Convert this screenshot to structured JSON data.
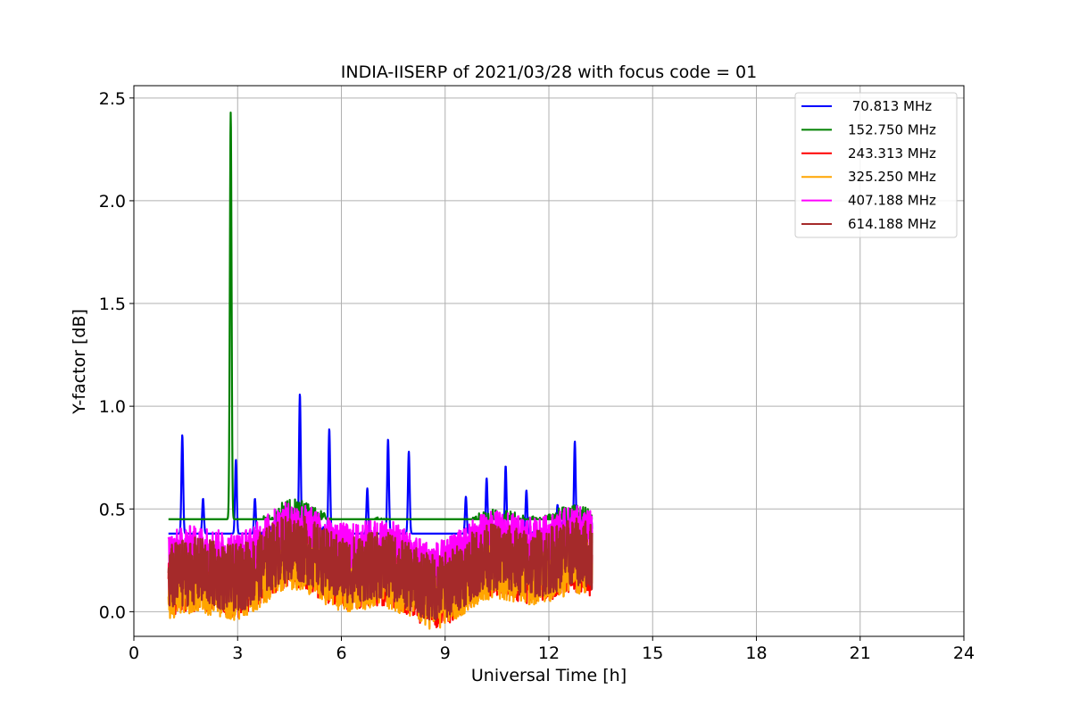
{
  "chart_data": {
    "type": "line",
    "title": "INDIA-IISERP of 2021/03/28 with focus code = 01",
    "xlabel": "Universal Time [h]",
    "ylabel": "Y-factor [dB]",
    "xlim": [
      0,
      24
    ],
    "ylim": [
      -0.12,
      2.56
    ],
    "x_ticks": [
      0,
      3,
      6,
      9,
      12,
      15,
      18,
      21,
      24
    ],
    "x_tick_labels": [
      "0",
      "3",
      "6",
      "9",
      "12",
      "15",
      "18",
      "21",
      "24"
    ],
    "y_ticks": [
      0.0,
      0.5,
      1.0,
      1.5,
      2.0,
      2.5
    ],
    "y_tick_labels": [
      "0.0",
      "0.5",
      "1.0",
      "1.5",
      "2.0",
      "2.5"
    ],
    "grid": true,
    "legend_position": "top-right",
    "data_range_x": [
      1.0,
      13.25
    ],
    "series": [
      {
        "name": " 70.813 MHz",
        "color": "#0000ff",
        "baseline": [
          0.3,
          0.38
        ],
        "peaks": [
          [
            1.4,
            0.86
          ],
          [
            2.0,
            0.55
          ],
          [
            2.95,
            0.74
          ],
          [
            3.5,
            0.55
          ],
          [
            4.8,
            1.06
          ],
          [
            5.65,
            0.89
          ],
          [
            6.75,
            0.6
          ],
          [
            7.35,
            0.84
          ],
          [
            7.95,
            0.78
          ],
          [
            9.6,
            0.56
          ],
          [
            10.2,
            0.65
          ],
          [
            10.75,
            0.71
          ],
          [
            11.35,
            0.59
          ],
          [
            12.25,
            0.52
          ],
          [
            12.75,
            0.83
          ],
          [
            13.2,
            0.43
          ]
        ]
      },
      {
        "name": "152.750 MHz",
        "color": "#008000",
        "baseline": [
          0.25,
          0.45
        ],
        "peaks": [
          [
            2.8,
            2.43
          ],
          [
            5.5,
            0.48
          ]
        ]
      },
      {
        "name": "243.313 MHz",
        "color": "#ff0000",
        "baseline": [
          0.02,
          0.3
        ],
        "peaks": []
      },
      {
        "name": "325.250 MHz",
        "color": "#ffa500",
        "baseline": [
          0.01,
          0.28
        ],
        "peaks": []
      },
      {
        "name": "407.188 MHz",
        "color": "#ff00ff",
        "baseline": [
          0.22,
          0.44
        ],
        "peaks": []
      },
      {
        "name": "614.188 MHz",
        "color": "#a52a2a",
        "baseline": [
          0.05,
          0.38
        ],
        "peaks": []
      }
    ]
  }
}
